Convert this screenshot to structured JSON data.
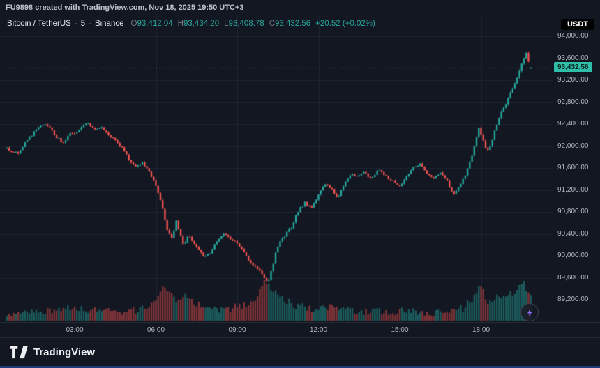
{
  "attribution": {
    "text": "FU9898 created with TradingView.com, Nov 18, 2025 19:50 UTC+3"
  },
  "symbol_bar": {
    "title": "Bitcoin / TetherUS",
    "separator": "·",
    "interval": "5",
    "exchange": "Binance",
    "ohlc": [
      {
        "label": "O",
        "value": "93,412.04"
      },
      {
        "label": "H",
        "value": "93,434.20"
      },
      {
        "label": "L",
        "value": "93,408.78"
      },
      {
        "label": "C",
        "value": "93,432.56"
      }
    ],
    "change": "+20.52 (+0.02%)"
  },
  "currency_badge": "USDT",
  "price_axis": {
    "labels": [
      {
        "text": "94,000.00",
        "value": 94000
      },
      {
        "text": "93,600.00",
        "value": 93600
      },
      {
        "text": "93,200.00",
        "value": 93200
      },
      {
        "text": "92,800.00",
        "value": 92800
      },
      {
        "text": "92,400.00",
        "value": 92400
      },
      {
        "text": "92,000.00",
        "value": 92000
      },
      {
        "text": "91,600.00",
        "value": 91600
      },
      {
        "text": "91,200.00",
        "value": 91200
      },
      {
        "text": "90,800.00",
        "value": 90800
      },
      {
        "text": "90,400.00",
        "value": 90400
      },
      {
        "text": "90,000.00",
        "value": 90000
      },
      {
        "text": "89,600.00",
        "value": 89600
      },
      {
        "text": "89,200.00",
        "value": 89200
      }
    ],
    "last_price": {
      "text": "93,432.56",
      "value": 93432.56
    }
  },
  "time_axis": {
    "labels": [
      {
        "text": "03:00",
        "minutes": 180
      },
      {
        "text": "06:00",
        "minutes": 360
      },
      {
        "text": "09:00",
        "minutes": 540
      },
      {
        "text": "12:00",
        "minutes": 720
      },
      {
        "text": "15:00",
        "minutes": 900
      },
      {
        "text": "18:00",
        "minutes": 1080
      }
    ]
  },
  "footer": {
    "brand": "TradingView"
  },
  "chart_data": {
    "type": "candlestick",
    "title": "Bitcoin / TetherUS",
    "exchange": "Binance",
    "interval_minutes": 5,
    "x_start_minute": 30,
    "x_end_minute": 1190,
    "ylim": [
      89000,
      94150
    ],
    "price_gridline_step": 400,
    "time_gridline_step_minutes": 180,
    "last_price": 93432.56,
    "last_bar": {
      "open": 93412.04,
      "high": 93434.2,
      "low": 93408.78,
      "close": 93432.56,
      "change": "+20.52",
      "change_pct": "+0.02%"
    },
    "colors": {
      "up": "#26a69a",
      "down": "#ef5350",
      "last_price_badge_bg": "#2fbfa9",
      "grid": "#1f2433"
    },
    "price_path_anchors": [
      [
        25,
        91980
      ],
      [
        40,
        91900
      ],
      [
        55,
        91870
      ],
      [
        70,
        92050
      ],
      [
        85,
        92200
      ],
      [
        100,
        92330
      ],
      [
        110,
        92400
      ],
      [
        125,
        92330
      ],
      [
        140,
        92160
      ],
      [
        155,
        92050
      ],
      [
        168,
        92230
      ],
      [
        180,
        92210
      ],
      [
        195,
        92350
      ],
      [
        210,
        92410
      ],
      [
        225,
        92320
      ],
      [
        240,
        92330
      ],
      [
        255,
        92210
      ],
      [
        270,
        92110
      ],
      [
        285,
        91960
      ],
      [
        300,
        91760
      ],
      [
        315,
        91610
      ],
      [
        330,
        91690
      ],
      [
        345,
        91520
      ],
      [
        360,
        91280
      ],
      [
        372,
        90980
      ],
      [
        385,
        90480
      ],
      [
        395,
        90330
      ],
      [
        405,
        90620
      ],
      [
        415,
        90380
      ],
      [
        422,
        90180
      ],
      [
        432,
        90380
      ],
      [
        448,
        90180
      ],
      [
        465,
        90000
      ],
      [
        480,
        90060
      ],
      [
        495,
        90260
      ],
      [
        510,
        90380
      ],
      [
        525,
        90310
      ],
      [
        540,
        90210
      ],
      [
        555,
        90060
      ],
      [
        570,
        89860
      ],
      [
        585,
        89760
      ],
      [
        598,
        89620
      ],
      [
        608,
        89520
      ],
      [
        618,
        89800
      ],
      [
        628,
        90150
      ],
      [
        642,
        90330
      ],
      [
        660,
        90520
      ],
      [
        675,
        90820
      ],
      [
        690,
        90960
      ],
      [
        705,
        90860
      ],
      [
        720,
        91120
      ],
      [
        735,
        91320
      ],
      [
        748,
        91220
      ],
      [
        762,
        91060
      ],
      [
        778,
        91300
      ],
      [
        792,
        91500
      ],
      [
        806,
        91460
      ],
      [
        820,
        91530
      ],
      [
        836,
        91410
      ],
      [
        852,
        91560
      ],
      [
        868,
        91460
      ],
      [
        884,
        91360
      ],
      [
        900,
        91260
      ],
      [
        915,
        91450
      ],
      [
        930,
        91610
      ],
      [
        945,
        91660
      ],
      [
        960,
        91510
      ],
      [
        975,
        91430
      ],
      [
        990,
        91530
      ],
      [
        1005,
        91360
      ],
      [
        1018,
        91120
      ],
      [
        1032,
        91260
      ],
      [
        1048,
        91520
      ],
      [
        1062,
        91900
      ],
      [
        1075,
        92320
      ],
      [
        1082,
        92180
      ],
      [
        1092,
        91880
      ],
      [
        1102,
        92050
      ],
      [
        1112,
        92320
      ],
      [
        1122,
        92560
      ],
      [
        1132,
        92720
      ],
      [
        1142,
        92920
      ],
      [
        1152,
        93080
      ],
      [
        1162,
        93280
      ],
      [
        1172,
        93560
      ],
      [
        1180,
        93680
      ],
      [
        1184,
        93540
      ],
      [
        1187,
        93470
      ],
      [
        1195,
        93432.56
      ]
    ],
    "volume_anchors": [
      [
        25,
        0.14
      ],
      [
        100,
        0.2
      ],
      [
        180,
        0.32
      ],
      [
        215,
        0.28
      ],
      [
        280,
        0.2
      ],
      [
        340,
        0.3
      ],
      [
        365,
        0.55
      ],
      [
        378,
        0.9
      ],
      [
        392,
        0.7
      ],
      [
        410,
        0.5
      ],
      [
        425,
        0.62
      ],
      [
        450,
        0.38
      ],
      [
        480,
        0.3
      ],
      [
        520,
        0.26
      ],
      [
        555,
        0.4
      ],
      [
        580,
        0.5
      ],
      [
        600,
        0.95
      ],
      [
        615,
        0.75
      ],
      [
        630,
        0.65
      ],
      [
        660,
        0.4
      ],
      [
        700,
        0.3
      ],
      [
        730,
        0.34
      ],
      [
        770,
        0.28
      ],
      [
        820,
        0.24
      ],
      [
        870,
        0.22
      ],
      [
        920,
        0.24
      ],
      [
        970,
        0.2
      ],
      [
        1010,
        0.26
      ],
      [
        1040,
        0.3
      ],
      [
        1062,
        0.55
      ],
      [
        1078,
        0.85
      ],
      [
        1095,
        0.5
      ],
      [
        1115,
        0.55
      ],
      [
        1140,
        0.6
      ],
      [
        1160,
        0.75
      ],
      [
        1172,
        1.0
      ],
      [
        1182,
        0.8
      ],
      [
        1195,
        0.55
      ]
    ]
  }
}
